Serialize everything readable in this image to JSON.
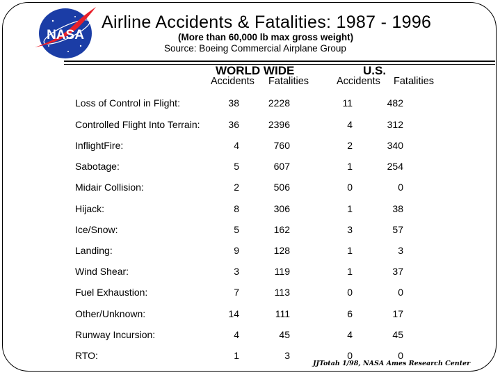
{
  "header": {
    "logo_text": "NASA",
    "title": "Airline Accidents & Fatalities: 1987 - 1996",
    "subtitle": "(More than 60,000 lb max gross weight)",
    "source": "Source:  Boeing Commercial Airplane Group"
  },
  "groups": {
    "world": "WORLD WIDE",
    "us": "U.S."
  },
  "columns": {
    "world_accidents": "Accidents",
    "world_fatalities": "Fatalities",
    "us_accidents": "Accidents",
    "us_fatalities": "Fatalities"
  },
  "rows": [
    {
      "label": "Loss of Control in Flight:",
      "wa": "38",
      "wf": "2228",
      "ua": "11",
      "uf": "482"
    },
    {
      "label": "Controlled Flight Into Terrain:",
      "wa": "36",
      "wf": "2396",
      "ua": "4",
      "uf": "312"
    },
    {
      "label": "InflightFire:",
      "wa": "4",
      "wf": "760",
      "ua": "2",
      "uf": "340"
    },
    {
      "label": "Sabotage:",
      "wa": "5",
      "wf": "607",
      "ua": "1",
      "uf": "254"
    },
    {
      "label": "Midair Collision:",
      "wa": "2",
      "wf": "506",
      "ua": "0",
      "uf": "0"
    },
    {
      "label": "Hijack:",
      "wa": "8",
      "wf": "306",
      "ua": "1",
      "uf": "38"
    },
    {
      "label": "Ice/Snow:",
      "wa": "5",
      "wf": "162",
      "ua": "3",
      "uf": "57"
    },
    {
      "label": "Landing:",
      "wa": "9",
      "wf": "128",
      "ua": "1",
      "uf": "3"
    },
    {
      "label": "Wind Shear:",
      "wa": "3",
      "wf": "119",
      "ua": "1",
      "uf": "37"
    },
    {
      "label": "Fuel Exhaustion:",
      "wa": "7",
      "wf": "113",
      "ua": "0",
      "uf": "0"
    },
    {
      "label": "Other/Unknown:",
      "wa": "14",
      "wf": "111",
      "ua": "6",
      "uf": "17"
    },
    {
      "label": "Runway Incursion:",
      "wa": "4",
      "wf": "45",
      "ua": "4",
      "uf": "45"
    },
    {
      "label": "RTO:",
      "wa": "1",
      "wf": "3",
      "ua": "0",
      "uf": "0"
    }
  ],
  "footer": {
    "credit": "JJTotah 1/98, NASA Ames Research Center"
  },
  "colors": {
    "nasa_blue": "#1b3da6",
    "nasa_red": "#e8202a"
  }
}
